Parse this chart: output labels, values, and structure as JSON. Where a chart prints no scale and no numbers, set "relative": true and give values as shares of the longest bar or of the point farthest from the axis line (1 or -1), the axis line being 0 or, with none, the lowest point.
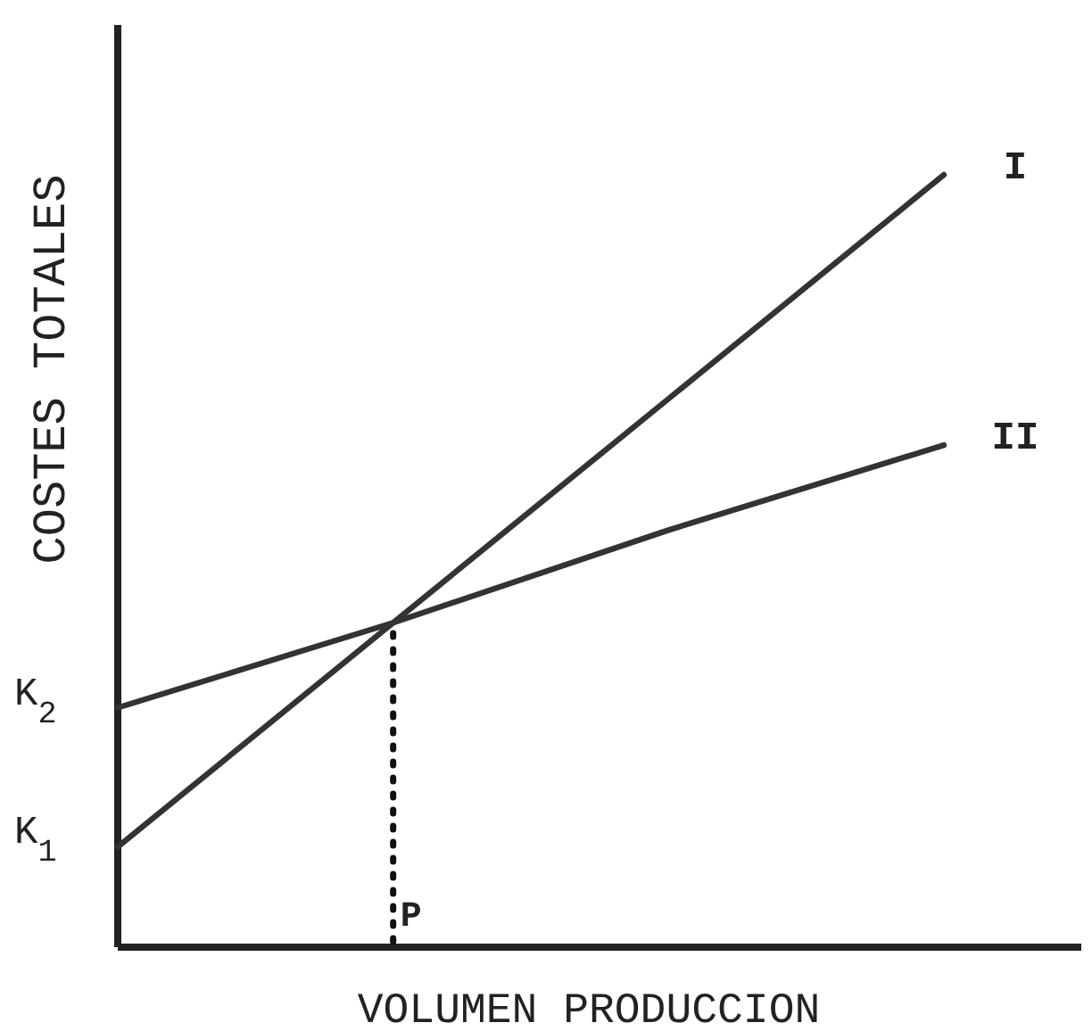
{
  "chart_data": {
    "type": "line",
    "relative": true,
    "xlabel": "VOLUMEN PRODUCCION",
    "ylabel": "COSTES TOTALES",
    "categories": [
      null,
      null,
      null,
      null
    ],
    "series": [
      {
        "name": "I",
        "color": "#333333",
        "values": [
          0.13,
          0.42,
          0.71,
          1.0
        ]
      },
      {
        "name": "II",
        "color": "#333333",
        "values": [
          0.31,
          0.42,
          0.54,
          0.65
        ]
      }
    ],
    "annotations": [
      "K$_{1}$",
      "K$_{2}$",
      "P"
    ],
    "legend": false,
    "marker": "none",
    "line_style": "solid",
    "grid": false
  }
}
